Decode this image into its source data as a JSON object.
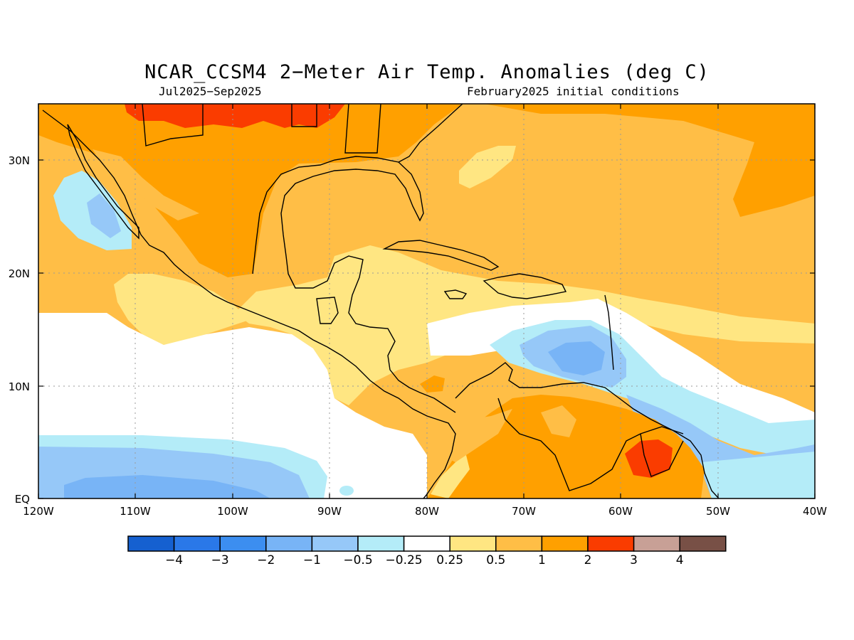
{
  "map": {
    "title": "NCAR_CCSM4 2−Meter Air Temp. Anomalies (deg C)",
    "subtitle_left": "Jul2025−Sep2025",
    "subtitle_right": "February2025 initial conditions",
    "lon_range": [
      -120,
      -40
    ],
    "lat_range": [
      0,
      35
    ],
    "lon_ticks": [
      "120W",
      "110W",
      "100W",
      "90W",
      "80W",
      "70W",
      "60W",
      "50W",
      "40W"
    ],
    "lat_ticks": [
      "EQ",
      "10N",
      "20N",
      "30N"
    ],
    "gridlines": true
  },
  "colorbar": {
    "colors": [
      "#1560d0",
      "#2a78e8",
      "#3c8ef0",
      "#78b4f6",
      "#96c8f8",
      "#b4ecf8",
      "#ffffff",
      "#ffe682",
      "#ffbe46",
      "#ffa000",
      "#fa3c00",
      "#c8a096",
      "#785046"
    ],
    "labels": [
      "−4",
      "−3",
      "−2",
      "−1",
      "−0.5",
      "−0.25",
      "0.25",
      "0.5",
      "1",
      "2",
      "3",
      "4"
    ]
  }
}
